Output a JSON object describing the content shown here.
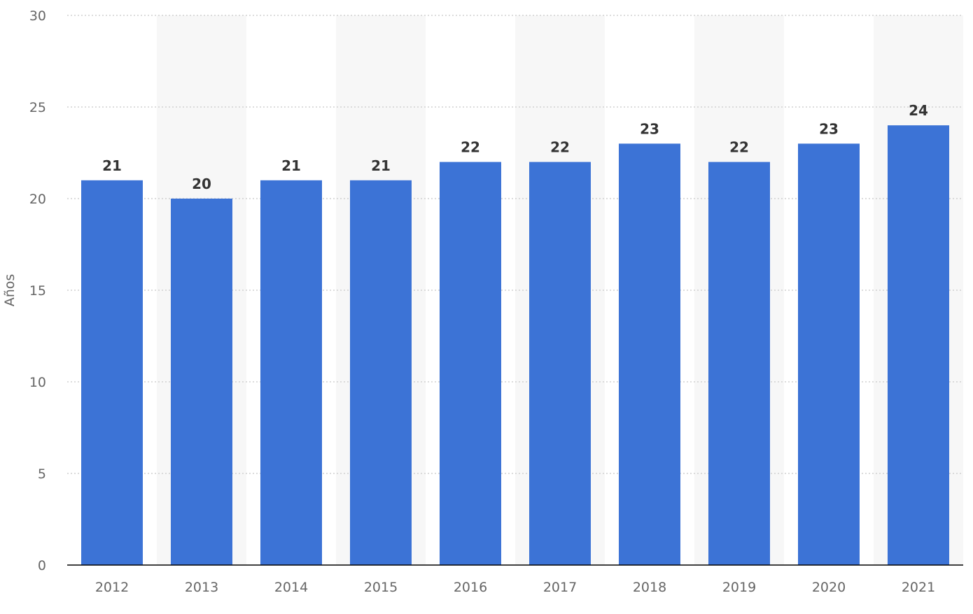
{
  "chart_data": {
    "type": "bar",
    "title": "",
    "xlabel": "",
    "ylabel": "Años",
    "categories": [
      "2012",
      "2013",
      "2014",
      "2015",
      "2016",
      "2017",
      "2018",
      "2019",
      "2020",
      "2021"
    ],
    "values": [
      21,
      20,
      21,
      21,
      22,
      22,
      23,
      22,
      23,
      24
    ],
    "value_labels": [
      "21",
      "20",
      "21",
      "21",
      "22",
      "22",
      "23",
      "22",
      "23",
      "24"
    ],
    "ylim": [
      0,
      30
    ],
    "yticks": [
      0,
      5,
      10,
      15,
      20,
      25,
      30
    ],
    "ytick_labels": [
      "0",
      "5",
      "10",
      "15",
      "20",
      "25",
      "30"
    ],
    "grid": true,
    "legend": "none",
    "colors": {
      "bar": "#3c73d6",
      "grid": "#c8c8c8",
      "band": "#f7f7f7",
      "axis": "#000000",
      "tick_text": "#666666",
      "value_text": "#333333"
    }
  }
}
